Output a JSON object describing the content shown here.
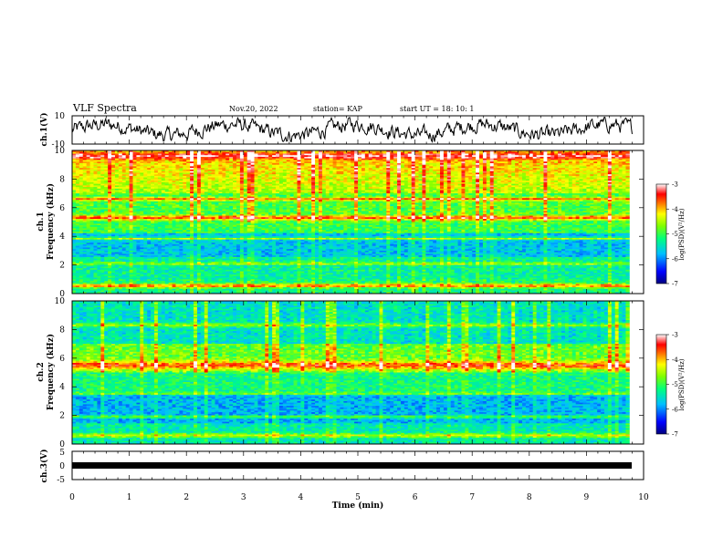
{
  "header": {
    "title": "VLF Spectra",
    "date": "Nov.20, 2022",
    "station": "station= KAP",
    "start_ut": "start UT =  18: 10: 1"
  },
  "chart_data": [
    {
      "type": "line",
      "ylabel": "ch.1(V)",
      "ylim": [
        -10,
        10
      ],
      "yticks": [
        "10",
        "-10"
      ],
      "xlim": [
        0,
        10
      ],
      "line_color": "#000000",
      "description_values": "noisy waveform roughly between -10 and 8 V over 0-9.8 min"
    },
    {
      "type": "heatmap",
      "ylabel": "ch.1\nFrequency (kHz)",
      "ylabel_top": "ch.1",
      "ylabel_bottom": "Frequency (kHz)",
      "ylim": [
        0,
        10
      ],
      "yticks": [
        "0",
        "2",
        "4",
        "6",
        "8",
        "10"
      ],
      "xlim": [
        0,
        10
      ],
      "colorbar": {
        "label": "log(PSD)(V²/Hz)",
        "range": [
          -7,
          -3
        ],
        "ticks": [
          "-3",
          "-4",
          "-5",
          "-6",
          "-7"
        ]
      }
    },
    {
      "type": "heatmap",
      "ylabel_top": "ch.2",
      "ylabel_bottom": "Frequency (kHz)",
      "ylim": [
        0,
        10
      ],
      "yticks": [
        "0",
        "2",
        "4",
        "6",
        "8",
        "10"
      ],
      "xlim": [
        0,
        10
      ],
      "colorbar": {
        "label": "log(PSD)(V²/Hz)",
        "range": [
          -7,
          -3
        ],
        "ticks": [
          "-3",
          "-4",
          "-5",
          "-6",
          "-7"
        ]
      }
    },
    {
      "type": "line",
      "ylabel": "ch.3(V)",
      "ylim": [
        -5,
        5
      ],
      "yticks": [
        "5",
        "0",
        "-5"
      ],
      "xlim": [
        0,
        10
      ],
      "xlabel": "Time  (min)",
      "xticks": [
        "0",
        "1",
        "2",
        "3",
        "4",
        "5",
        "6",
        "7",
        "8",
        "9",
        "10"
      ],
      "line_color": "#000000"
    }
  ]
}
